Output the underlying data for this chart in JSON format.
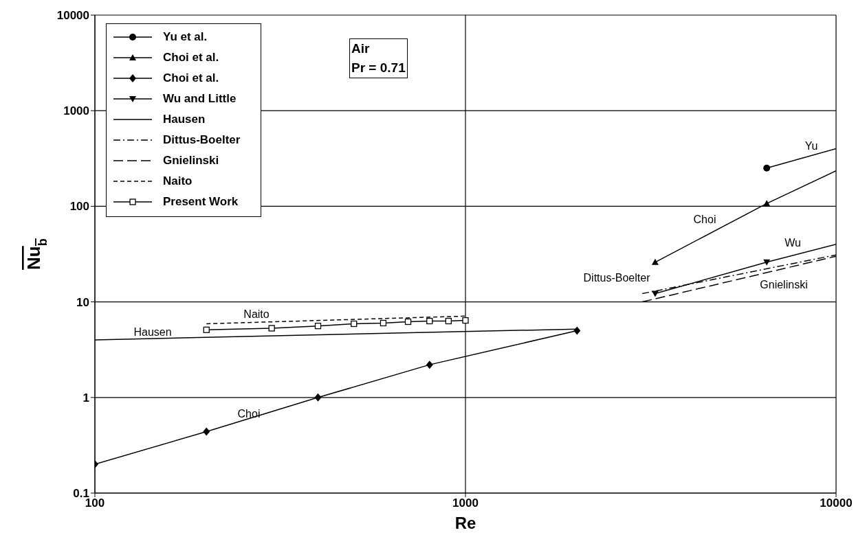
{
  "chart_data": {
    "type": "line",
    "xlabel": "Re",
    "ylabel": "Nu$_{b}$",
    "log": "xy",
    "xlim": [
      100,
      10000
    ],
    "xticks": [
      100,
      1000,
      10000
    ],
    "ylim": [
      0.1,
      10000
    ],
    "yticks": [
      0.1,
      1,
      10,
      100,
      1000,
      10000
    ],
    "grid": true,
    "legend": "top left",
    "series": [
      {
        "name": "Yu et al.",
        "color": "#000000",
        "marker": "circle",
        "line_style": "solid",
        "x": [
          6500
        ],
        "values": [
          251
        ]
      },
      {
        "color": "#000000",
        "marker": "none",
        "line_style": "solid",
        "x": [
          6500,
          10000
        ],
        "values": [
          251,
          400
        ]
      },
      {
        "name": "Choi et al.",
        "color": "#000000",
        "marker": "triangle",
        "line_style": "solid",
        "x": [
          3250,
          6500
        ],
        "values": [
          26,
          107
        ]
      },
      {
        "color": "#000000",
        "marker": "none",
        "line_style": "solid",
        "x": [
          6500,
          10000
        ],
        "values": [
          107,
          235
        ]
      },
      {
        "name": "Choi et al.",
        "color": "#000000",
        "marker": "diamond",
        "line_style": "solid",
        "x": [
          100,
          200,
          400,
          800,
          2000
        ],
        "values": [
          0.2,
          0.44,
          1.0,
          2.2,
          5.0
        ]
      },
      {
        "name": "Wu and Little",
        "color": "#000000",
        "marker": "triangle-down",
        "line_style": "solid",
        "x": [
          3250,
          6500
        ],
        "values": [
          12.2,
          26
        ]
      },
      {
        "color": "#000000",
        "marker": "none",
        "line_style": "solid",
        "x": [
          6500,
          10000
        ],
        "values": [
          26,
          40
        ]
      },
      {
        "name": "Hausen",
        "color": "#000000",
        "marker": "none",
        "line_style": "solid",
        "x": [
          100,
          2000
        ],
        "values": [
          4.0,
          5.2
        ]
      },
      {
        "name": "Dittus-Boelter",
        "color": "#000000",
        "marker": "none",
        "line_style": "dashdot",
        "x": [
          3000,
          10000
        ],
        "values": [
          12.2,
          31
        ]
      },
      {
        "name": "Gnielinski",
        "color": "#000000",
        "marker": "none",
        "line_style": "longdash",
        "x": [
          3000,
          10000
        ],
        "values": [
          10,
          30
        ]
      },
      {
        "name": "Naito",
        "color": "#000000",
        "marker": "none",
        "line_style": "dashed",
        "x": [
          200,
          1000
        ],
        "values": [
          5.9,
          7.1
        ]
      },
      {
        "name": "Present Work",
        "color": "#000000",
        "marker": "square",
        "line_style": "solid",
        "x": [
          200,
          300,
          400,
          500,
          600,
          700,
          800,
          900,
          1000
        ],
        "values": [
          5.1,
          5.3,
          5.6,
          5.9,
          6.0,
          6.2,
          6.3,
          6.3,
          6.4
        ]
      }
    ],
    "annotations": [
      "Yu",
      "Choi",
      "Wu",
      "Dittus-Boelter",
      "Gnielinski",
      "Naito",
      "Hausen",
      "Choi",
      "Air",
      "Pr = 0.71"
    ]
  }
}
